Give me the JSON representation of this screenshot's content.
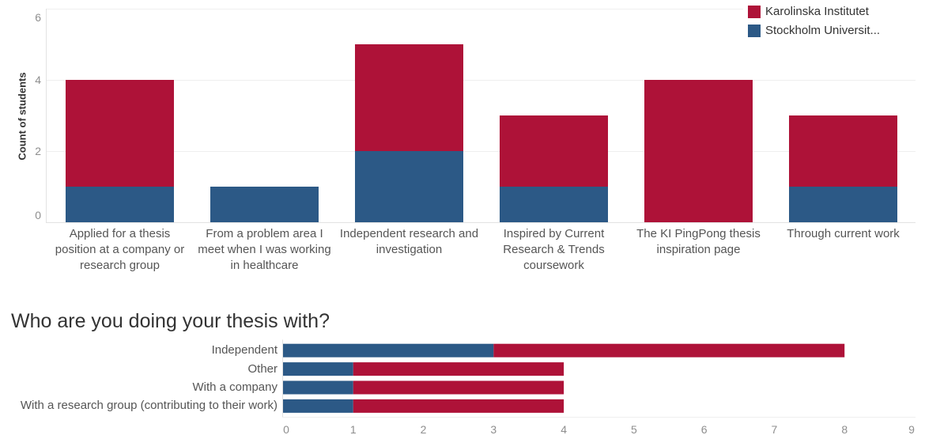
{
  "legend": {
    "items": [
      {
        "label": "Karolinska Institutet",
        "color": "#AE1238"
      },
      {
        "label": "Stockholm Universit...",
        "color": "#2C5986"
      }
    ]
  },
  "chart_data": [
    {
      "type": "bar",
      "orientation": "vertical",
      "stacked": true,
      "ylabel": "Count of students",
      "categories": [
        "Applied for a thesis position at a company or research group",
        "From a problem area I meet when I was working in healthcare",
        "Independent research and investigation",
        "Inspired by Current Research & Trends coursework",
        "The KI PingPong thesis inspiration page",
        "Through current work"
      ],
      "series": [
        {
          "name": "Stockholm Universit...",
          "color": "#2C5986",
          "values": [
            1,
            1,
            2,
            1,
            0,
            1
          ]
        },
        {
          "name": "Karolinska Institutet",
          "color": "#AE1238",
          "values": [
            3,
            0,
            3,
            2,
            4,
            2
          ]
        }
      ],
      "ylim": [
        0,
        6
      ],
      "yticks": [
        0,
        2,
        4,
        6
      ],
      "grid": true,
      "legend": "top-right"
    },
    {
      "type": "bar",
      "orientation": "horizontal",
      "stacked": true,
      "title": "Who are you doing your thesis with?",
      "categories": [
        "Independent",
        "Other",
        "With a company",
        "With a research group (contributing to their work)"
      ],
      "series": [
        {
          "name": "Stockholm Universit...",
          "color": "#2C5986",
          "values": [
            3,
            1,
            1,
            1
          ]
        },
        {
          "name": "Karolinska Institutet",
          "color": "#AE1238",
          "values": [
            5,
            3,
            3,
            3
          ]
        }
      ],
      "xlim": [
        0,
        9
      ],
      "xticks": [
        0,
        1,
        2,
        3,
        4,
        5,
        6,
        7,
        8,
        9
      ],
      "grid": false
    }
  ]
}
